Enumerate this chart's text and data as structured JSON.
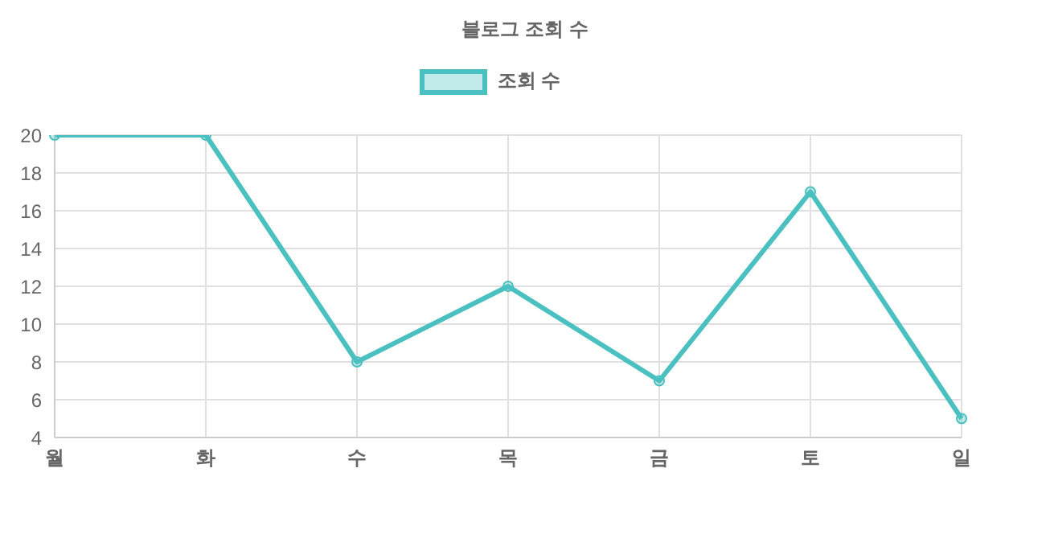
{
  "chart_data": {
    "type": "line",
    "title": "블로그 조회 수",
    "categories": [
      "월",
      "화",
      "수",
      "목",
      "금",
      "토",
      "일"
    ],
    "series": [
      {
        "name": "조회 수",
        "color": "#4bc0c0",
        "values": [
          20,
          20,
          8,
          12,
          7,
          17,
          5
        ]
      }
    ],
    "ylim": [
      4,
      20
    ],
    "yticks": [
      4,
      6,
      8,
      10,
      12,
      14,
      16,
      18,
      20
    ],
    "grid": true,
    "legend": "top",
    "marker": "circle",
    "line_style": "solid"
  }
}
